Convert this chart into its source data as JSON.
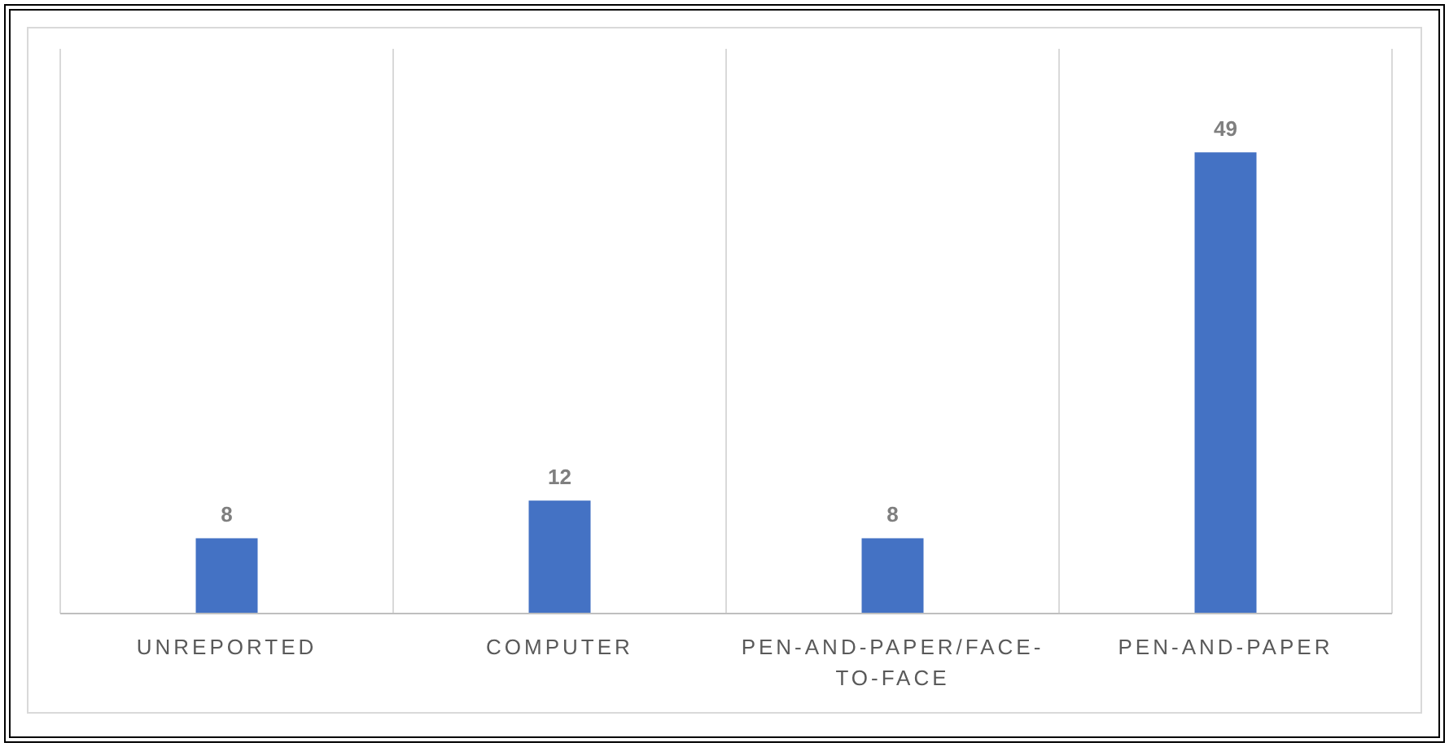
{
  "chart_data": {
    "type": "bar",
    "categories": [
      "UNREPORTED",
      "COMPUTER",
      "PEN-AND-PAPER/FACE-TO-FACE",
      "PEN-AND-PAPER"
    ],
    "values": [
      8,
      12,
      8,
      49
    ],
    "color": "#4472c4",
    "ylim": [
      0,
      60
    ],
    "data_labels": true,
    "grid": "x",
    "tick_labels": "x"
  }
}
